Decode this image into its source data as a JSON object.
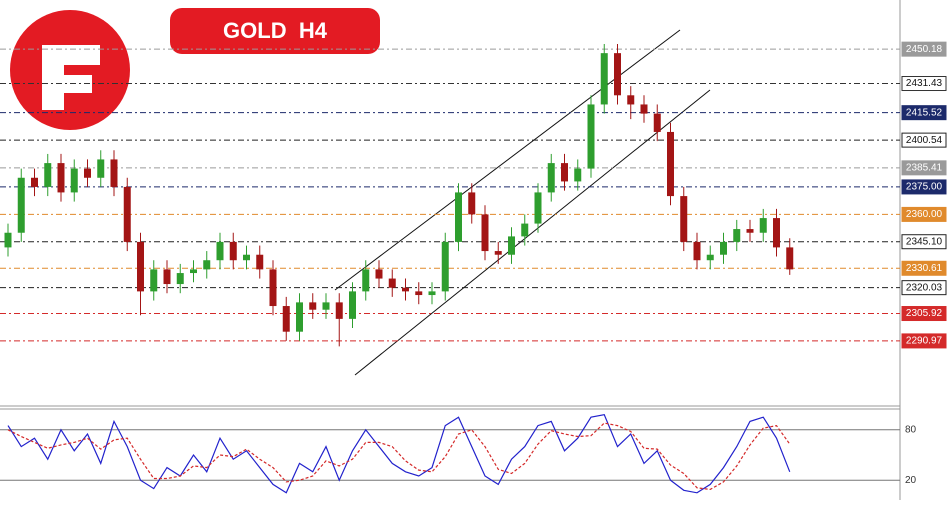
{
  "chart_data": {
    "type": "candlestick",
    "title": "GOLD  H4",
    "ylim": [
      2256,
      2477
    ],
    "open": [
      2342,
      2350,
      2380,
      2375,
      2388,
      2372,
      2385,
      2380,
      2390,
      2375,
      2345,
      2318,
      2330,
      2322,
      2328,
      2330,
      2335,
      2345,
      2335,
      2338,
      2330,
      2310,
      2296,
      2312,
      2308,
      2312,
      2303,
      2318,
      2330,
      2325,
      2320,
      2318,
      2316,
      2318,
      2345,
      2372,
      2360,
      2340,
      2338,
      2348,
      2355,
      2372,
      2388,
      2378,
      2385,
      2420,
      2448,
      2425,
      2420,
      2415,
      2405,
      2370,
      2345,
      2335,
      2338,
      2345,
      2352,
      2350,
      2358,
      2342
    ],
    "high": [
      2355,
      2385,
      2385,
      2393,
      2393,
      2390,
      2390,
      2395,
      2395,
      2380,
      2350,
      2335,
      2335,
      2333,
      2335,
      2340,
      2350,
      2350,
      2343,
      2343,
      2335,
      2315,
      2317,
      2317,
      2317,
      2317,
      2323,
      2335,
      2335,
      2330,
      2325,
      2323,
      2323,
      2350,
      2377,
      2377,
      2365,
      2345,
      2353,
      2360,
      2377,
      2393,
      2393,
      2390,
      2425,
      2453,
      2453,
      2430,
      2425,
      2420,
      2410,
      2375,
      2350,
      2343,
      2350,
      2357,
      2357,
      2363,
      2363,
      2347
    ],
    "low": [
      2337,
      2345,
      2370,
      2370,
      2367,
      2367,
      2375,
      2375,
      2370,
      2340,
      2305,
      2313,
      2317,
      2317,
      2323,
      2325,
      2330,
      2330,
      2330,
      2325,
      2305,
      2291,
      2291,
      2303,
      2303,
      2288,
      2298,
      2313,
      2320,
      2315,
      2313,
      2311,
      2311,
      2313,
      2340,
      2355,
      2335,
      2333,
      2333,
      2343,
      2350,
      2367,
      2373,
      2373,
      2380,
      2415,
      2420,
      2412,
      2410,
      2400,
      2365,
      2340,
      2330,
      2330,
      2333,
      2340,
      2345,
      2345,
      2337,
      2327
    ],
    "close": [
      2350,
      2380,
      2375,
      2388,
      2372,
      2385,
      2380,
      2390,
      2375,
      2345,
      2318,
      2330,
      2322,
      2328,
      2330,
      2335,
      2345,
      2335,
      2338,
      2330,
      2310,
      2296,
      2312,
      2308,
      2312,
      2303,
      2318,
      2330,
      2325,
      2320,
      2318,
      2316,
      2318,
      2345,
      2372,
      2360,
      2340,
      2338,
      2348,
      2355,
      2372,
      2388,
      2378,
      2385,
      2420,
      2448,
      2425,
      2420,
      2415,
      2405,
      2370,
      2345,
      2335,
      2338,
      2345,
      2352,
      2350,
      2358,
      2342,
      2330
    ],
    "up_color": "#2e9e2e",
    "down_color": "#a31515",
    "levels": [
      2450.18,
      2431.43,
      2415.52,
      2400.54,
      2385.41,
      2375.0,
      2360.0,
      2345.1,
      2330.61,
      2320.03,
      2305.92,
      2290.97
    ],
    "level_labels": [
      "2450.18",
      "2431.43",
      "2415.52",
      "2400.54",
      "2385.41",
      "2375.00",
      "2360.00",
      "2345.10",
      "2330.61",
      "2320.03",
      "2305.92",
      "2290.97"
    ],
    "level_colors": [
      "#9a9a9a",
      "#333333",
      "#1c2a6b",
      "#222222",
      "#9a9a9a",
      "#1c2a6b",
      "#e08a2c",
      "#222222",
      "#e08a2c",
      "#222222",
      "#d42a2a",
      "#d42a2a"
    ],
    "oscillator": {
      "ylim": [
        0,
        100
      ],
      "yticks": [
        20,
        80
      ],
      "series": [
        {
          "color": "#2222cc",
          "values": [
            85,
            60,
            70,
            45,
            80,
            55,
            75,
            40,
            90,
            60,
            20,
            10,
            35,
            25,
            50,
            30,
            70,
            45,
            55,
            35,
            15,
            5,
            40,
            30,
            60,
            20,
            55,
            80,
            60,
            40,
            30,
            25,
            35,
            85,
            95,
            60,
            25,
            15,
            45,
            60,
            85,
            90,
            55,
            70,
            95,
            98,
            60,
            75,
            40,
            55,
            20,
            8,
            5,
            15,
            35,
            60,
            90,
            95,
            70,
            30
          ]
        },
        {
          "color": "#d42a2a",
          "values": [
            80,
            72,
            65,
            58,
            62,
            65,
            70,
            57,
            68,
            70,
            45,
            22,
            22,
            25,
            37,
            35,
            50,
            48,
            57,
            45,
            35,
            18,
            20,
            25,
            43,
            37,
            45,
            65,
            65,
            60,
            43,
            32,
            30,
            48,
            75,
            80,
            60,
            33,
            28,
            40,
            63,
            79,
            75,
            72,
            73,
            88,
            85,
            78,
            58,
            57,
            38,
            28,
            11,
            9,
            18,
            37,
            62,
            82,
            85,
            63
          ]
        }
      ]
    }
  }
}
